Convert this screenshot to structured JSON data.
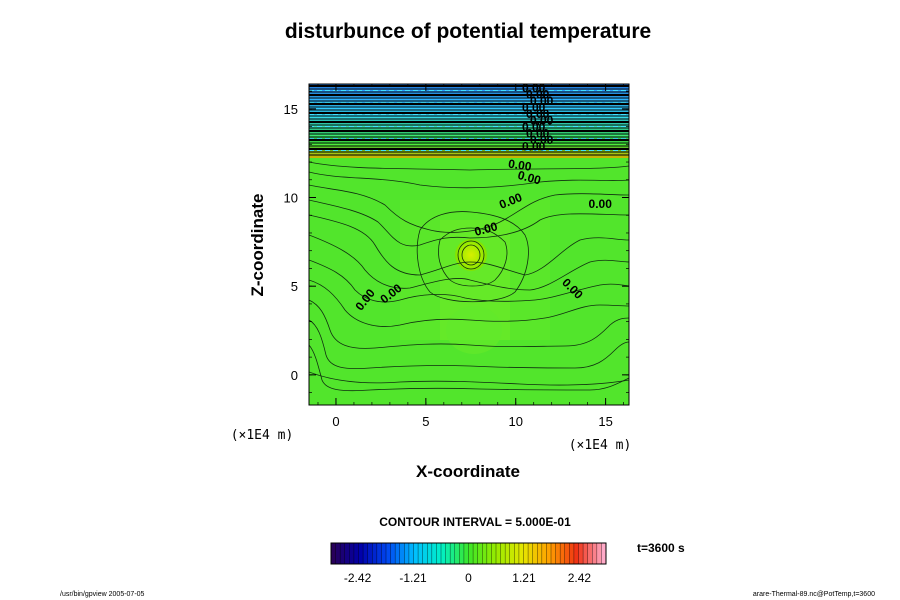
{
  "chart_data": {
    "type": "heatmap",
    "title": "disturbunce of potential temperature",
    "xlabel": "X-coordinate",
    "ylabel": "Z-coordinate",
    "x_unit": "(×1E4 m)",
    "z_unit": "(×1E4 m)",
    "xlim": [
      -1.5,
      16.3
    ],
    "ylim": [
      -1.7,
      16.4
    ],
    "x_ticks": [
      0,
      5,
      10,
      15
    ],
    "y_ticks": [
      0,
      5,
      10,
      15
    ],
    "x_tick_labels": [
      "0",
      "5",
      "10",
      "15"
    ],
    "y_tick_labels": [
      "0",
      "5",
      "10",
      "15"
    ],
    "contour_interval_text": "CONTOUR INTERVAL = 5.000E-01",
    "contour_labels": [
      {
        "text": "0.00",
        "x": 1.8,
        "z": 4.1,
        "angle": -52
      },
      {
        "text": "0.00",
        "x": 3.2,
        "z": 4.4,
        "angle": -38
      },
      {
        "text": "0.00",
        "x": 13.0,
        "z": 4.7,
        "angle": 45
      },
      {
        "text": "0.00",
        "x": 8.4,
        "z": 8.0,
        "angle": -15
      },
      {
        "text": "0.00",
        "x": 9.8,
        "z": 9.6,
        "angle": -22
      },
      {
        "text": "0.00",
        "x": 10.7,
        "z": 10.9,
        "angle": 15
      },
      {
        "text": "0.00",
        "x": 10.2,
        "z": 11.6,
        "angle": 8
      },
      {
        "text": "0.00",
        "x": 14.7,
        "z": 9.4,
        "angle": 0
      }
    ],
    "colorbar": {
      "min": -3.0,
      "max": 3.0,
      "tick_labels": [
        "-2.42",
        "-1.21",
        "0",
        "1.21",
        "2.42"
      ],
      "tick_values": [
        -2.42,
        -1.21,
        0,
        1.21,
        2.42
      ]
    },
    "time_label": "t=3600 s"
  },
  "footer": {
    "left": "/usr/bin/gpview 2005-07-05",
    "right": "arare-Thermal-89.nc@PotTemp,t=3600"
  }
}
